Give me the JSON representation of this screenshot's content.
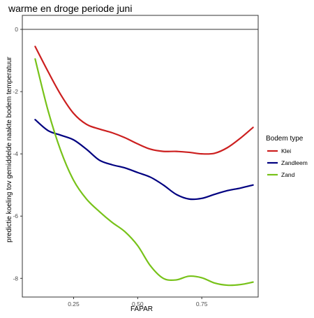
{
  "chart_data": {
    "type": "line",
    "title": "warme en droge periode juni",
    "xlabel": "FAPAR",
    "ylabel": "predictie koeling tov gemiddelde naakte bodem temperatuur",
    "xlim": [
      0.05,
      0.97
    ],
    "ylim": [
      -8.6,
      0.45
    ],
    "x_ticks": [
      0.25,
      0.5,
      0.75
    ],
    "x_tick_labels": [
      "0.25",
      "0.50",
      "0.75"
    ],
    "y_ticks": [
      0,
      -2,
      -4,
      -6,
      -8
    ],
    "y_tick_labels": [
      "0",
      "-2",
      "-4",
      "-6",
      "-8"
    ],
    "reference_line_y": 0,
    "grid": false,
    "legend": {
      "title": "Bodem type",
      "position": "right"
    },
    "series": [
      {
        "name": "Klei",
        "color": "#cc1f1f",
        "x": [
          0.1,
          0.15,
          0.2,
          0.25,
          0.3,
          0.35,
          0.4,
          0.45,
          0.5,
          0.55,
          0.6,
          0.65,
          0.7,
          0.75,
          0.8,
          0.85,
          0.9,
          0.95
        ],
        "y": [
          -0.55,
          -1.35,
          -2.1,
          -2.7,
          -3.05,
          -3.2,
          -3.32,
          -3.48,
          -3.68,
          -3.85,
          -3.92,
          -3.92,
          -3.95,
          -4.0,
          -3.98,
          -3.8,
          -3.5,
          -3.15
        ]
      },
      {
        "name": "Zandleem",
        "color": "#000080",
        "x": [
          0.1,
          0.15,
          0.2,
          0.25,
          0.3,
          0.35,
          0.4,
          0.45,
          0.5,
          0.55,
          0.6,
          0.65,
          0.7,
          0.75,
          0.8,
          0.85,
          0.9,
          0.95
        ],
        "y": [
          -2.9,
          -3.25,
          -3.4,
          -3.55,
          -3.85,
          -4.2,
          -4.35,
          -4.45,
          -4.6,
          -4.75,
          -5.0,
          -5.3,
          -5.45,
          -5.43,
          -5.3,
          -5.18,
          -5.1,
          -5.0
        ]
      },
      {
        "name": "Zand",
        "color": "#77c219",
        "x": [
          0.1,
          0.15,
          0.2,
          0.25,
          0.3,
          0.35,
          0.4,
          0.45,
          0.5,
          0.55,
          0.6,
          0.65,
          0.7,
          0.75,
          0.8,
          0.85,
          0.9,
          0.95
        ],
        "y": [
          -0.95,
          -2.6,
          -3.9,
          -4.85,
          -5.45,
          -5.85,
          -6.2,
          -6.5,
          -6.95,
          -7.6,
          -8.0,
          -8.05,
          -7.93,
          -7.98,
          -8.15,
          -8.22,
          -8.2,
          -8.12
        ]
      }
    ]
  }
}
